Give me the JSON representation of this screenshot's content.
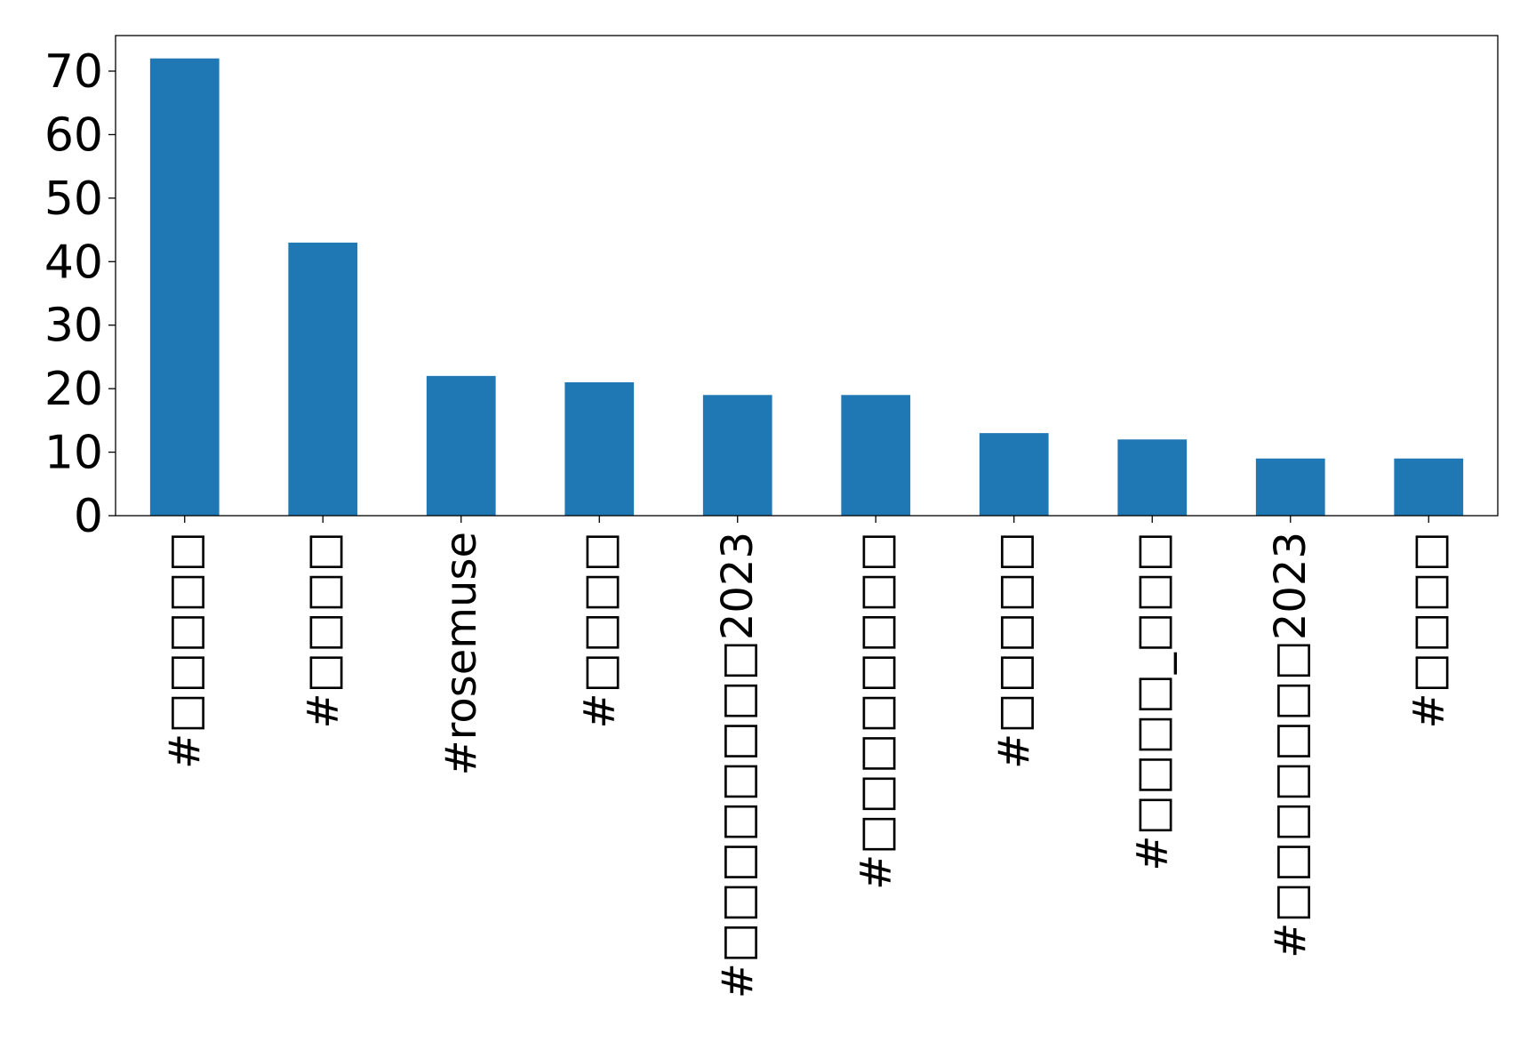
{
  "chart_data": {
    "type": "bar",
    "title": "",
    "xlabel": "",
    "ylabel": "",
    "categories": [
      "#□□□□□",
      "#□□□□",
      "#rosemuse",
      "#□□□□",
      "#□□□□□□□□2023",
      "#□□□□□□□□",
      "#□□□□□",
      "#□□□□_□□□",
      "#□□□□□□□2023",
      "#□□□□"
    ],
    "values": [
      72,
      43,
      22,
      21,
      19,
      19,
      13,
      12,
      9,
      9
    ],
    "ylim": [
      0,
      75.6
    ],
    "yticks": [
      0,
      10,
      20,
      30,
      40,
      50,
      60,
      70
    ],
    "grid": false,
    "legend": "none",
    "colors": {
      "bar": "#1f77b4",
      "axis": "#000000",
      "background": "#ffffff"
    }
  }
}
